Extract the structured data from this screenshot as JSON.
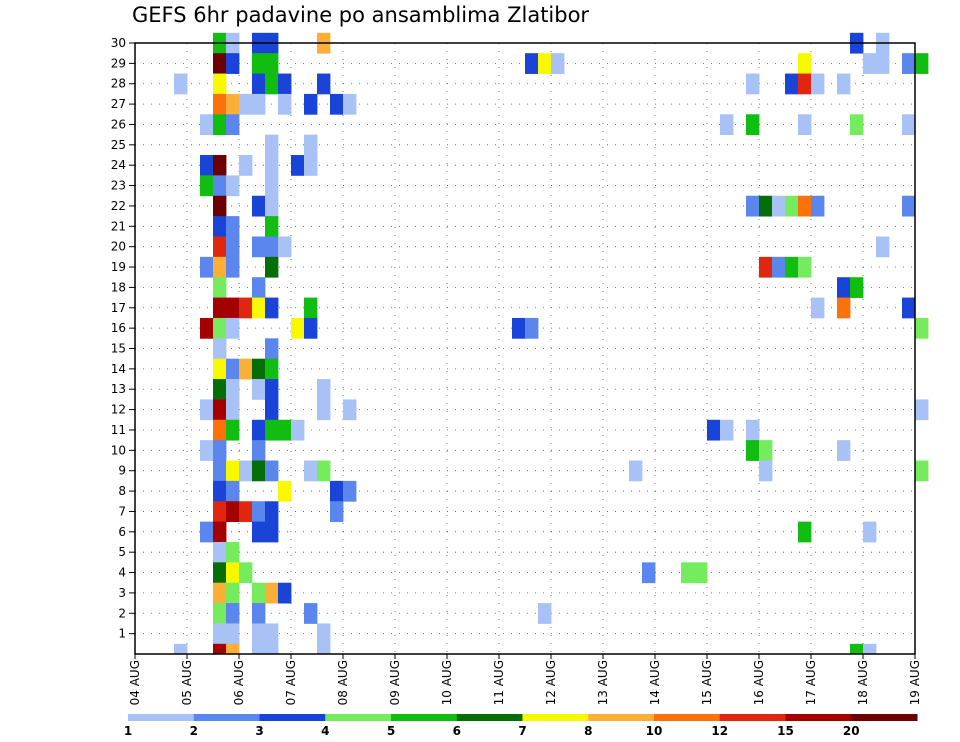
{
  "chart_data": {
    "type": "heatmap",
    "title": "GEFS 6hr padavine po ansamblima Zlatibor",
    "xlabel": "",
    "ylabel": "",
    "x_tick_labels": [
      "04 AUG",
      "05 AUG",
      "06 AUG",
      "07 AUG",
      "08 AUG",
      "09 AUG",
      "10 AUG",
      "11 AUG",
      "12 AUG",
      "13 AUG",
      "14 AUG",
      "15 AUG",
      "16 AUG",
      "17 AUG",
      "18 AUG",
      "19 AUG"
    ],
    "y_tick_labels": [
      "1",
      "2",
      "3",
      "4",
      "5",
      "6",
      "7",
      "8",
      "9",
      "10",
      "11",
      "12",
      "13",
      "14",
      "15",
      "16",
      "17",
      "18",
      "19",
      "20",
      "21",
      "22",
      "23",
      "24",
      "25",
      "26",
      "27",
      "28",
      "29",
      "30"
    ],
    "x_range_days": [
      0,
      15
    ],
    "y_range": [
      0,
      30
    ],
    "grid": true,
    "colorbar": {
      "levels": [
        "1",
        "2",
        "3",
        "4",
        "5",
        "6",
        "7",
        "8",
        "10",
        "12",
        "15",
        "20"
      ],
      "colors": [
        "#a8c2f5",
        "#5a86ee",
        "#1a44d8",
        "#75ec5e",
        "#12bd12",
        "#066e06",
        "#f8f800",
        "#fcaf36",
        "#fb720a",
        "#e0260e",
        "#a40000",
        "#6a0000"
      ]
    },
    "cell_units_days": 0.25,
    "cells": [
      [
        1.5,
        30,
        4
      ],
      [
        1.75,
        30,
        0
      ],
      [
        2.25,
        30,
        2
      ],
      [
        2.5,
        30,
        2
      ],
      [
        3.5,
        30,
        7
      ],
      [
        13.75,
        30,
        2
      ],
      [
        14.25,
        30,
        0
      ],
      [
        1.5,
        29,
        11
      ],
      [
        1.75,
        29,
        2
      ],
      [
        2.25,
        29,
        4
      ],
      [
        2.5,
        29,
        4
      ],
      [
        7.5,
        29,
        2
      ],
      [
        7.75,
        29,
        6
      ],
      [
        8.0,
        29,
        0
      ],
      [
        12.75,
        29,
        6
      ],
      [
        14.0,
        29,
        0
      ],
      [
        14.25,
        29,
        0
      ],
      [
        14.75,
        29,
        1
      ],
      [
        15.0,
        29,
        4
      ],
      [
        0.75,
        28,
        0
      ],
      [
        1.5,
        28,
        6
      ],
      [
        2.25,
        28,
        2
      ],
      [
        2.5,
        28,
        4
      ],
      [
        2.75,
        28,
        2
      ],
      [
        3.5,
        28,
        2
      ],
      [
        11.75,
        28,
        0
      ],
      [
        12.5,
        28,
        2
      ],
      [
        12.75,
        28,
        9
      ],
      [
        13.0,
        28,
        0
      ],
      [
        13.5,
        28,
        0
      ],
      [
        1.5,
        27,
        8
      ],
      [
        1.75,
        27,
        7
      ],
      [
        2.0,
        27,
        0
      ],
      [
        2.25,
        27,
        0
      ],
      [
        2.75,
        27,
        0
      ],
      [
        3.25,
        27,
        2
      ],
      [
        3.75,
        27,
        2
      ],
      [
        4.0,
        27,
        0
      ],
      [
        1.25,
        26,
        0
      ],
      [
        1.5,
        26,
        4
      ],
      [
        1.75,
        26,
        1
      ],
      [
        11.25,
        26,
        0
      ],
      [
        11.75,
        26,
        4
      ],
      [
        12.75,
        26,
        0
      ],
      [
        13.75,
        26,
        3
      ],
      [
        14.75,
        26,
        0
      ],
      [
        2.5,
        25,
        0
      ],
      [
        3.25,
        25,
        0
      ],
      [
        1.25,
        24,
        2
      ],
      [
        1.5,
        24,
        11
      ],
      [
        2.0,
        24,
        0
      ],
      [
        2.5,
        24,
        0
      ],
      [
        3.0,
        24,
        2
      ],
      [
        3.25,
        24,
        0
      ],
      [
        1.25,
        23,
        4
      ],
      [
        1.5,
        23,
        1
      ],
      [
        1.75,
        23,
        0
      ],
      [
        2.5,
        23,
        0
      ],
      [
        1.5,
        22,
        11
      ],
      [
        2.25,
        22,
        2
      ],
      [
        2.5,
        22,
        0
      ],
      [
        11.75,
        22,
        1
      ],
      [
        12.0,
        22,
        5
      ],
      [
        12.25,
        22,
        0
      ],
      [
        12.5,
        22,
        3
      ],
      [
        12.75,
        22,
        8
      ],
      [
        13.0,
        22,
        1
      ],
      [
        14.75,
        22,
        1
      ],
      [
        1.5,
        21,
        2
      ],
      [
        1.75,
        21,
        1
      ],
      [
        2.5,
        21,
        4
      ],
      [
        1.5,
        20,
        9
      ],
      [
        1.75,
        20,
        1
      ],
      [
        2.25,
        20,
        1
      ],
      [
        2.5,
        20,
        1
      ],
      [
        2.75,
        20,
        0
      ],
      [
        14.25,
        20,
        0
      ],
      [
        1.25,
        19,
        1
      ],
      [
        1.5,
        19,
        7
      ],
      [
        1.75,
        19,
        1
      ],
      [
        2.5,
        19,
        5
      ],
      [
        12.0,
        19,
        9
      ],
      [
        12.25,
        19,
        1
      ],
      [
        12.5,
        19,
        4
      ],
      [
        12.75,
        19,
        3
      ],
      [
        1.5,
        18,
        3
      ],
      [
        2.25,
        18,
        1
      ],
      [
        13.5,
        18,
        2
      ],
      [
        13.75,
        18,
        4
      ],
      [
        1.5,
        17,
        10
      ],
      [
        1.75,
        17,
        10
      ],
      [
        2.0,
        17,
        9
      ],
      [
        2.25,
        17,
        6
      ],
      [
        2.5,
        17,
        2
      ],
      [
        3.25,
        17,
        4
      ],
      [
        13.0,
        17,
        0
      ],
      [
        13.5,
        17,
        8
      ],
      [
        14.75,
        17,
        2
      ],
      [
        1.25,
        16,
        10
      ],
      [
        1.5,
        16,
        3
      ],
      [
        1.75,
        16,
        0
      ],
      [
        3.0,
        16,
        6
      ],
      [
        3.25,
        16,
        2
      ],
      [
        7.25,
        16,
        2
      ],
      [
        7.5,
        16,
        1
      ],
      [
        15.0,
        16,
        3
      ],
      [
        1.5,
        15,
        0
      ],
      [
        2.5,
        15,
        1
      ],
      [
        1.5,
        14,
        6
      ],
      [
        1.75,
        14,
        1
      ],
      [
        2.0,
        14,
        7
      ],
      [
        2.25,
        14,
        5
      ],
      [
        2.5,
        14,
        4
      ],
      [
        1.5,
        13,
        5
      ],
      [
        1.75,
        13,
        0
      ],
      [
        2.25,
        13,
        0
      ],
      [
        2.5,
        13,
        2
      ],
      [
        3.5,
        13,
        0
      ],
      [
        1.25,
        12,
        0
      ],
      [
        1.5,
        12,
        10
      ],
      [
        1.75,
        12,
        0
      ],
      [
        2.5,
        12,
        2
      ],
      [
        3.5,
        12,
        0
      ],
      [
        4.0,
        12,
        0
      ],
      [
        15.0,
        12,
        0
      ],
      [
        1.5,
        11,
        8
      ],
      [
        1.75,
        11,
        4
      ],
      [
        2.25,
        11,
        2
      ],
      [
        2.5,
        11,
        4
      ],
      [
        2.75,
        11,
        4
      ],
      [
        3.0,
        11,
        0
      ],
      [
        11.0,
        11,
        2
      ],
      [
        11.25,
        11,
        0
      ],
      [
        11.75,
        11,
        0
      ],
      [
        1.25,
        10,
        0
      ],
      [
        1.5,
        10,
        1
      ],
      [
        2.25,
        10,
        1
      ],
      [
        11.75,
        10,
        4
      ],
      [
        12.0,
        10,
        3
      ],
      [
        13.5,
        10,
        0
      ],
      [
        1.5,
        9,
        1
      ],
      [
        1.75,
        9,
        6
      ],
      [
        2.0,
        9,
        0
      ],
      [
        2.25,
        9,
        5
      ],
      [
        2.5,
        9,
        1
      ],
      [
        3.25,
        9,
        0
      ],
      [
        3.5,
        9,
        3
      ],
      [
        9.5,
        9,
        0
      ],
      [
        12.0,
        9,
        0
      ],
      [
        15.0,
        9,
        3
      ],
      [
        1.5,
        8,
        2
      ],
      [
        1.75,
        8,
        1
      ],
      [
        2.75,
        8,
        6
      ],
      [
        3.75,
        8,
        2
      ],
      [
        4.0,
        8,
        1
      ],
      [
        1.5,
        7,
        9
      ],
      [
        1.75,
        7,
        10
      ],
      [
        2.0,
        7,
        9
      ],
      [
        2.25,
        7,
        1
      ],
      [
        2.5,
        7,
        2
      ],
      [
        3.75,
        7,
        1
      ],
      [
        1.25,
        6,
        1
      ],
      [
        1.5,
        6,
        10
      ],
      [
        2.25,
        6,
        2
      ],
      [
        2.5,
        6,
        2
      ],
      [
        12.75,
        6,
        4
      ],
      [
        14.0,
        6,
        0
      ],
      [
        1.5,
        5,
        0
      ],
      [
        1.75,
        5,
        3
      ],
      [
        1.5,
        4,
        5
      ],
      [
        1.75,
        4,
        6
      ],
      [
        2.0,
        4,
        3
      ],
      [
        9.75,
        4,
        1
      ],
      [
        10.5,
        4,
        3
      ],
      [
        10.75,
        4,
        3
      ],
      [
        1.5,
        3,
        7
      ],
      [
        1.75,
        3,
        3
      ],
      [
        2.25,
        3,
        3
      ],
      [
        2.5,
        3,
        7
      ],
      [
        2.75,
        3,
        2
      ],
      [
        1.5,
        2,
        3
      ],
      [
        1.75,
        2,
        1
      ],
      [
        2.25,
        2,
        1
      ],
      [
        3.25,
        2,
        1
      ],
      [
        7.75,
        2,
        0
      ],
      [
        1.5,
        1,
        0
      ],
      [
        1.75,
        1,
        0
      ],
      [
        2.25,
        1,
        0
      ],
      [
        2.5,
        1,
        0
      ],
      [
        3.5,
        1,
        0
      ],
      [
        0.75,
        0,
        0
      ],
      [
        1.5,
        0,
        10
      ],
      [
        1.75,
        0,
        7
      ],
      [
        2.25,
        0,
        0
      ],
      [
        2.5,
        0,
        0
      ],
      [
        3.5,
        0,
        0
      ],
      [
        13.75,
        0,
        4
      ],
      [
        14.0,
        0,
        0
      ]
    ]
  }
}
